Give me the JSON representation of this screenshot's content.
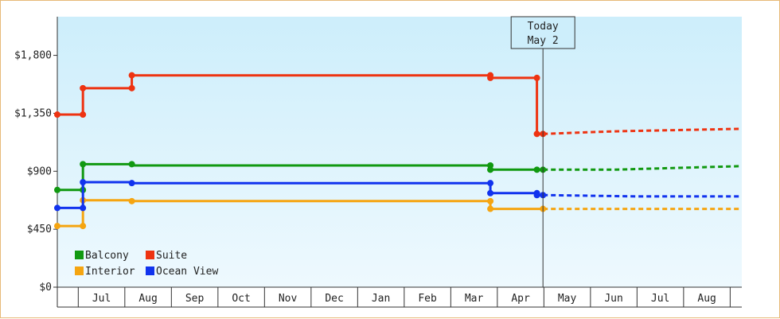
{
  "chart_data": {
    "type": "line",
    "ylim": [
      0,
      2100
    ],
    "y_ticks": [
      {
        "value": 0,
        "label": "$0"
      },
      {
        "value": 450,
        "label": "$450"
      },
      {
        "value": 900,
        "label": "$900"
      },
      {
        "value": 1350,
        "label": "$1,350"
      },
      {
        "value": 1800,
        "label": "$1,800"
      }
    ],
    "x_ticks": [
      {
        "pos": 0.5,
        "label": "Jul"
      },
      {
        "pos": 1.5,
        "label": "Aug"
      },
      {
        "pos": 2.5,
        "label": "Sep"
      },
      {
        "pos": 3.5,
        "label": "Oct"
      },
      {
        "pos": 4.5,
        "label": "Nov"
      },
      {
        "pos": 5.5,
        "label": "Dec"
      },
      {
        "pos": 6.5,
        "label": "Jan"
      },
      {
        "pos": 7.5,
        "label": "Feb"
      },
      {
        "pos": 8.5,
        "label": "Mar"
      },
      {
        "pos": 9.5,
        "label": "Apr"
      },
      {
        "pos": 10.5,
        "label": "May"
      },
      {
        "pos": 11.5,
        "label": "Jun"
      },
      {
        "pos": 12.5,
        "label": "Jul"
      },
      {
        "pos": 13.5,
        "label": "Aug"
      }
    ],
    "xlim": [
      -0.45,
      14.25
    ],
    "x_boundaries": [
      -0.45,
      0,
      1,
      2,
      3,
      4,
      5,
      6,
      7,
      8,
      9,
      10,
      11,
      12,
      13,
      14
    ],
    "today": {
      "x": 9.98,
      "label_line1": "Today",
      "label_line2": "May 2"
    },
    "legend_position": "bottom-left",
    "series": [
      {
        "name": "Balcony",
        "color": "#119911",
        "points": [
          [
            -0.45,
            755
          ],
          [
            0.1,
            755
          ],
          [
            0.1,
            955
          ],
          [
            1.15,
            955
          ],
          [
            1.15,
            945
          ],
          [
            8.85,
            945
          ],
          [
            8.85,
            912
          ],
          [
            9.85,
            912
          ],
          [
            9.98,
            912
          ]
        ],
        "markers": [
          [
            -0.45,
            755
          ],
          [
            0.1,
            755
          ],
          [
            0.1,
            955
          ],
          [
            1.15,
            955
          ],
          [
            8.85,
            945
          ],
          [
            8.85,
            912
          ],
          [
            9.85,
            912
          ],
          [
            9.98,
            912
          ]
        ],
        "forecast": [
          [
            9.98,
            912
          ],
          [
            11.5,
            912
          ],
          [
            14.25,
            940
          ]
        ]
      },
      {
        "name": "Suite",
        "color": "#ee3311",
        "points": [
          [
            -0.45,
            1340
          ],
          [
            0.1,
            1340
          ],
          [
            0.1,
            1545
          ],
          [
            1.15,
            1545
          ],
          [
            1.15,
            1645
          ],
          [
            8.85,
            1645
          ],
          [
            8.85,
            1625
          ],
          [
            9.85,
            1625
          ],
          [
            9.85,
            1190
          ],
          [
            9.98,
            1190
          ]
        ],
        "markers": [
          [
            -0.45,
            1340
          ],
          [
            0.1,
            1340
          ],
          [
            0.1,
            1545
          ],
          [
            1.15,
            1545
          ],
          [
            1.15,
            1645
          ],
          [
            8.85,
            1645
          ],
          [
            8.85,
            1625
          ],
          [
            9.85,
            1625
          ],
          [
            9.85,
            1190
          ],
          [
            9.98,
            1190
          ]
        ],
        "forecast": [
          [
            9.98,
            1190
          ],
          [
            11.5,
            1210
          ],
          [
            14.25,
            1230
          ]
        ]
      },
      {
        "name": "Interior",
        "color": "#f5a511",
        "points": [
          [
            -0.45,
            475
          ],
          [
            0.1,
            475
          ],
          [
            0.1,
            675
          ],
          [
            1.15,
            675
          ],
          [
            1.15,
            668
          ],
          [
            8.85,
            668
          ],
          [
            8.85,
            608
          ],
          [
            9.98,
            608
          ]
        ],
        "markers": [
          [
            -0.45,
            475
          ],
          [
            0.1,
            475
          ],
          [
            0.1,
            675
          ],
          [
            1.15,
            668
          ],
          [
            8.85,
            668
          ],
          [
            8.85,
            608
          ],
          [
            9.98,
            608
          ]
        ],
        "forecast": [
          [
            9.98,
            608
          ],
          [
            14.25,
            608
          ]
        ]
      },
      {
        "name": "Ocean View",
        "color": "#1133ee",
        "points": [
          [
            -0.45,
            615
          ],
          [
            0.1,
            615
          ],
          [
            0.1,
            815
          ],
          [
            1.15,
            815
          ],
          [
            1.15,
            808
          ],
          [
            8.85,
            808
          ],
          [
            8.85,
            730
          ],
          [
            9.85,
            730
          ],
          [
            9.85,
            715
          ],
          [
            9.98,
            715
          ]
        ],
        "markers": [
          [
            -0.45,
            615
          ],
          [
            0.1,
            615
          ],
          [
            0.1,
            815
          ],
          [
            1.15,
            808
          ],
          [
            8.85,
            808
          ],
          [
            8.85,
            730
          ],
          [
            9.85,
            730
          ],
          [
            9.85,
            715
          ],
          [
            9.98,
            715
          ]
        ],
        "forecast": [
          [
            9.98,
            715
          ],
          [
            12.0,
            705
          ],
          [
            14.25,
            705
          ]
        ]
      }
    ]
  }
}
